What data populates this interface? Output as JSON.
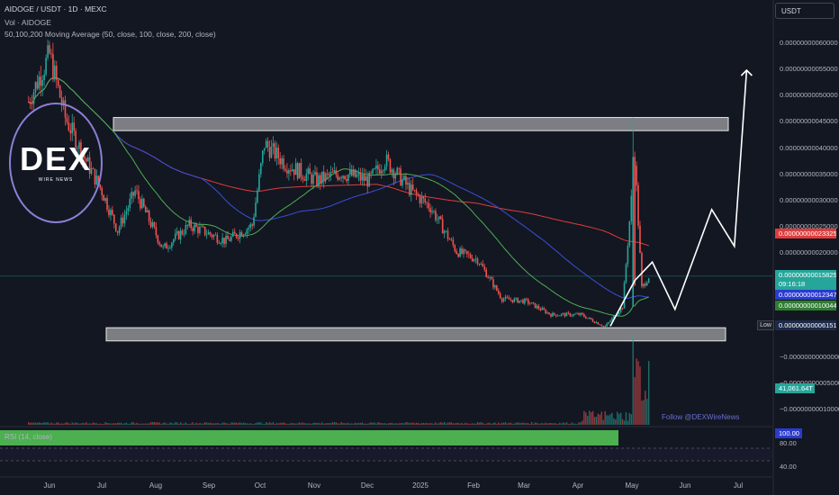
{
  "header": {
    "title": "AIDOGE / USDT · 1D · MEXC",
    "volume_label": "Vol · AIDOGE",
    "ma_label": "50,100,200 Moving Average (50, close, 100, close, 200, close)"
  },
  "logo": {
    "main": "DEX",
    "sub": "WIRE NEWS"
  },
  "follow_text": "Follow @DEXWireNews",
  "rsi_label": "RSI (14, close)",
  "price_axis": {
    "currency_button": "USDT",
    "ticks": [
      "0.00000000060000",
      "0.00000000055000",
      "0.00000000050000",
      "0.00000000045000",
      "0.00000000040000",
      "0.00000000035000",
      "0.00000000030000",
      "0.00000000025000",
      "0.00000000020000"
    ],
    "volume_ticks": [
      "−0.00000000000000",
      "−0.00000000005000",
      "−0.00000000010000"
    ],
    "tags": {
      "ma200": "0.00000000023325",
      "last_price": "0.00000000015825",
      "countdown": "09:16:18",
      "ma100": "0.00000000012347",
      "ma50": "0.00000000010044",
      "low": "0.00000000006151",
      "low_label": "Low",
      "volume": "41,061.64T"
    },
    "rsi_ticks": [
      "100.00",
      "80.00",
      "40.00"
    ]
  },
  "time_axis": [
    "Jun",
    "Jul",
    "Aug",
    "Sep",
    "Oct",
    "Nov",
    "Dec",
    "2025",
    "Feb",
    "Mar",
    "Apr",
    "May",
    "Jun",
    "Jul"
  ],
  "colors": {
    "background": "#131722",
    "up": "#26a69a",
    "down": "#ef5350",
    "ma50": "#4caf50",
    "ma100": "#3a4fd8",
    "ma200": "#e03c3c",
    "zone": "#d4d4d4",
    "rsi": "#4caf50"
  },
  "chart_data": {
    "type": "candlestick",
    "pair": "AIDOGE/USDT",
    "interval": "1D",
    "exchange": "MEXC",
    "price_close_points": [
      [
        "2024-05-20",
        4.9e-10
      ],
      [
        "2024-06-01",
        5.8e-10
      ],
      [
        "2024-06-10",
        4.6e-10
      ],
      [
        "2024-06-20",
        3.9e-10
      ],
      [
        "2024-07-01",
        3.2e-10
      ],
      [
        "2024-07-10",
        2.45e-10
      ],
      [
        "2024-07-20",
        3.2e-10
      ],
      [
        "2024-08-05",
        2.1e-10
      ],
      [
        "2024-08-20",
        2.55e-10
      ],
      [
        "2024-09-10",
        2.25e-10
      ],
      [
        "2024-09-25",
        2.55e-10
      ],
      [
        "2024-10-02",
        4.1e-10
      ],
      [
        "2024-10-15",
        3.7e-10
      ],
      [
        "2024-11-01",
        3.4e-10
      ],
      [
        "2024-11-15",
        3.55e-10
      ],
      [
        "2024-12-01",
        3.4e-10
      ],
      [
        "2024-12-10",
        3.8e-10
      ],
      [
        "2024-12-25",
        3.2e-10
      ],
      [
        "2025-01-05",
        2.9e-10
      ],
      [
        "2025-01-20",
        2.05e-10
      ],
      [
        "2025-02-01",
        1.9e-10
      ],
      [
        "2025-02-15",
        1.15e-10
      ],
      [
        "2025-03-01",
        1.1e-10
      ],
      [
        "2025-03-15",
        8.5e-11
      ],
      [
        "2025-04-01",
        8.5e-11
      ],
      [
        "2025-04-15",
        6.2e-11
      ],
      [
        "2025-04-25",
        1e-10
      ],
      [
        "2025-05-02",
        3.85e-10
      ],
      [
        "2025-05-06",
        1.35e-10
      ],
      [
        "2025-05-10",
        1.58e-10
      ]
    ],
    "moving_averages": [
      {
        "name": "MA 50",
        "length": 50,
        "last": 1.0044e-10
      },
      {
        "name": "MA 100",
        "length": 100,
        "last": 1.2347e-10
      },
      {
        "name": "MA 200",
        "length": 200,
        "last": 2.3325e-10
      }
    ],
    "resistance_zone": [
      4.35e-10,
      4.6e-10
    ],
    "support_zone": [
      3.5e-11,
      6e-11
    ],
    "projection_path": [
      [
        "2025-04-18",
        6.3e-11
      ],
      [
        "2025-05-02",
        1.5e-10
      ],
      [
        "2025-05-12",
        1.85e-10
      ],
      [
        "2025-05-25",
        9.5e-11
      ],
      [
        "2025-06-15",
        2.85e-10
      ],
      [
        "2025-06-28",
        2.15e-10
      ],
      [
        "2025-07-05",
        5.5e-10
      ]
    ],
    "last_price": 1.5825e-10,
    "low": 6.151e-11,
    "ylim": [
      -1e-10,
      6.2e-10
    ],
    "volume_last": "41,061.64T",
    "rsi_last": 100.0,
    "rsi_bands": [
      70,
      30
    ],
    "legend": "top-left",
    "grid": false
  }
}
